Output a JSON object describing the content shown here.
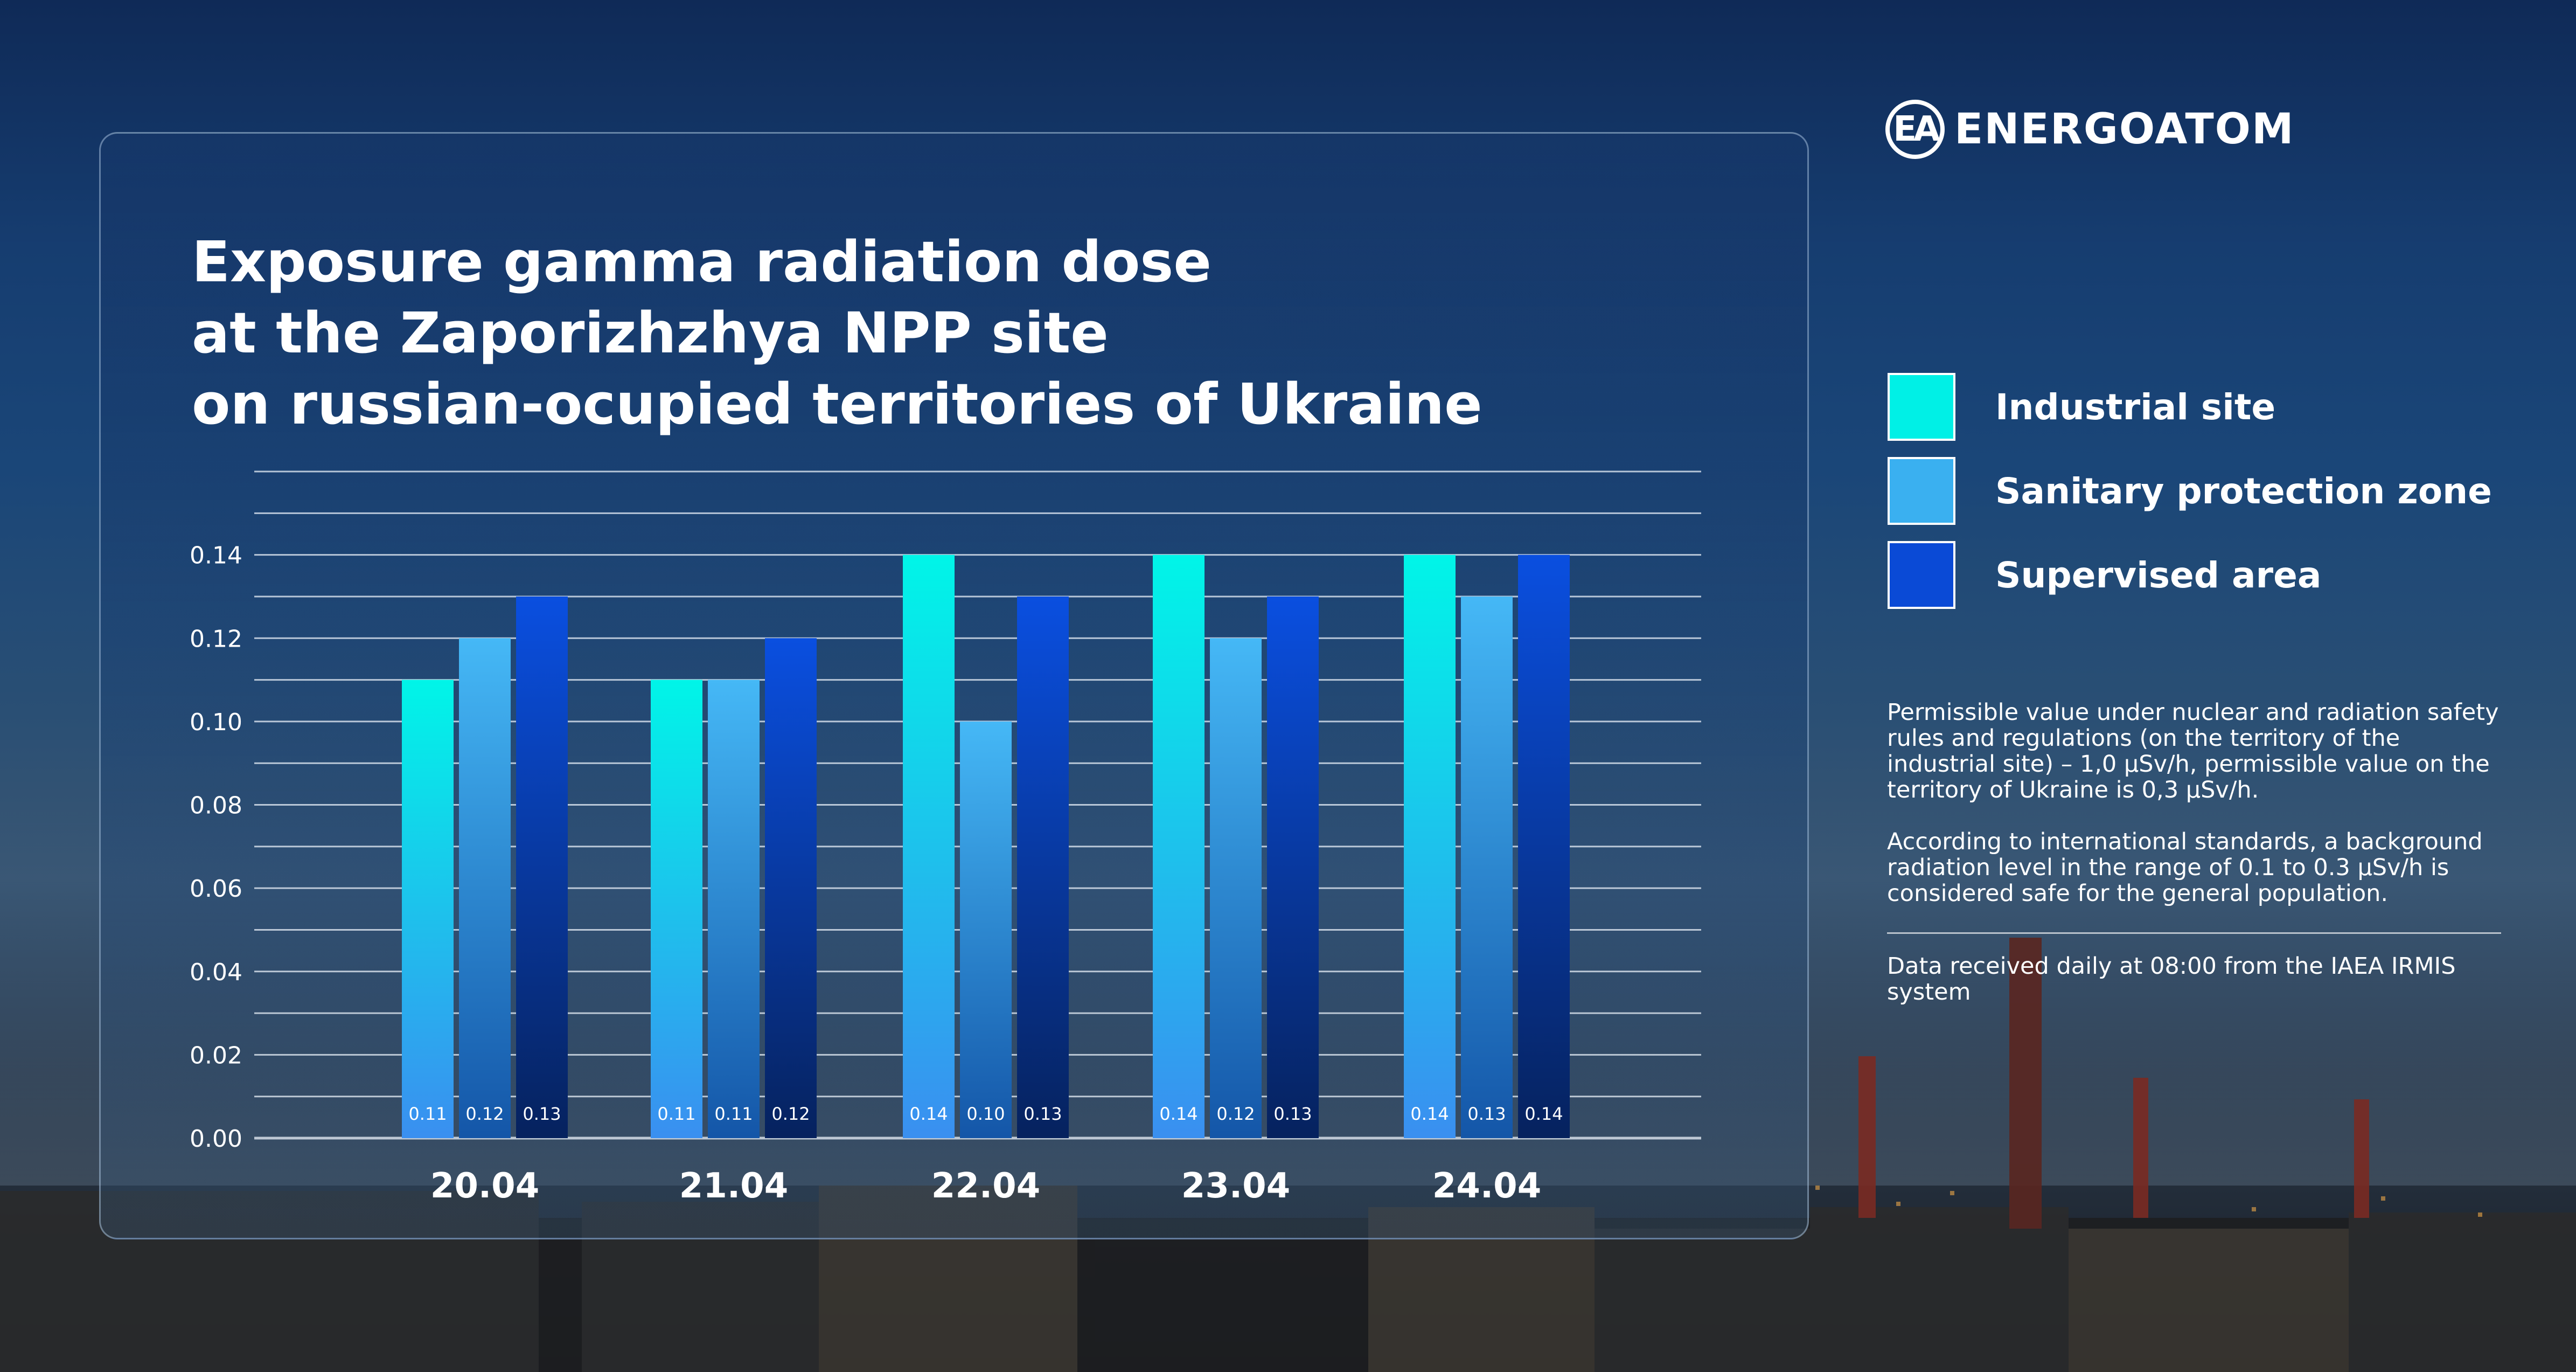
{
  "brand": {
    "name": "ENERGOATOM",
    "mark": "EA"
  },
  "title_lines": [
    "Exposure gamma radiation dose",
    "at the Zaporizhzhya NPP site",
    "on russian-ocupied territories of Ukraine"
  ],
  "legend": [
    {
      "label": "Industrial site",
      "color": "#00f0e6"
    },
    {
      "label": "Sanitary protection zone",
      "color": "#3ab0f0"
    },
    {
      "label": "Supervised area",
      "color": "#0a4ad6"
    }
  ],
  "notes": {
    "permissible": "Permissible value under nuclear and radiation safety rules and regulations (on the territory of the industrial site) – 1,0 µSv/h, permissible value on the territory of Ukraine is 0,3 µSv/h.",
    "background": "According to international standards, a background radiation level in the range of 0.1 to 0.3 µSv/h is considered safe for the general population.",
    "source": "Data received daily at 08:00 from the IAEA IRMIS system"
  },
  "chart_data": {
    "type": "bar",
    "categories": [
      "20.04",
      "21.04",
      "22.04",
      "23.04",
      "24.04"
    ],
    "series": [
      {
        "name": "Industrial site",
        "values": [
          0.11,
          0.11,
          0.14,
          0.14,
          0.14
        ],
        "labels": [
          "0.11",
          "0.11",
          "0.14",
          "0.14",
          "0.14"
        ]
      },
      {
        "name": "Sanitary protection zone",
        "values": [
          0.12,
          0.11,
          0.1,
          0.12,
          0.13
        ],
        "labels": [
          "0.12",
          "0.11",
          "0.10",
          "0.12",
          "0.13"
        ]
      },
      {
        "name": "Supervised area",
        "values": [
          0.13,
          0.12,
          0.13,
          0.13,
          0.14
        ],
        "labels": [
          "0.13",
          "0.12",
          "0.13",
          "0.13",
          "0.14"
        ]
      }
    ],
    "yticks": [
      "0.00",
      "0.02",
      "0.04",
      "0.06",
      "0.08",
      "0.10",
      "0.12",
      "0.14"
    ],
    "ylim": [
      0,
      0.16
    ],
    "grid": true,
    "legend": "right"
  }
}
